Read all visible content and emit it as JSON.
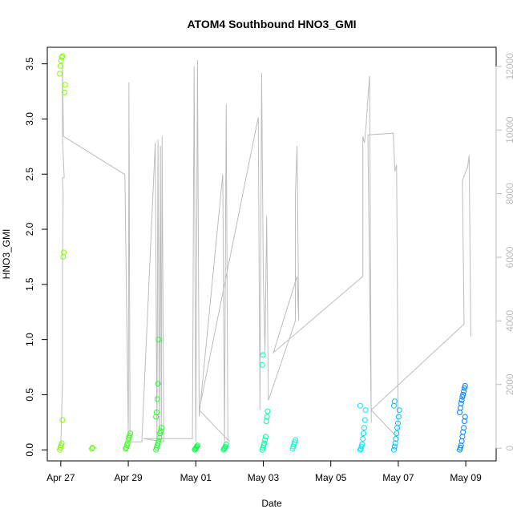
{
  "chart_data": {
    "type": "scatter",
    "title": "ATOM4 Southbound HNO3_GMI",
    "xlabel": "Date",
    "ylabel": "HNO3_GMI",
    "x_ticks": [
      "Apr 27",
      "Apr 29",
      "May 01",
      "May 03",
      "May 05",
      "May 07",
      "May 09"
    ],
    "x_tick_days": [
      0,
      2,
      4,
      6,
      8,
      10,
      12
    ],
    "xlim_days": [
      -0.4,
      12.9
    ],
    "y_ticks": [
      "0.0",
      "0.5",
      "1.0",
      "1.5",
      "2.0",
      "2.5",
      "3.0",
      "3.5"
    ],
    "ylim": [
      -0.1,
      3.65
    ],
    "y2_ticks": [
      "0",
      "2000",
      "4000",
      "6000",
      "8000",
      "10000",
      "12000"
    ],
    "y2lim": [
      -400,
      12600
    ],
    "y2_color": "#bdbdbd",
    "point_color_scale": [
      "#80ff00",
      "#00ff40",
      "#00ffff",
      "#0080ff"
    ],
    "series": [
      {
        "day": 0.05,
        "values": [
          0.0,
          0.02,
          0.04,
          0.06,
          0.27,
          1.75,
          1.79,
          3.24,
          3.31,
          3.41,
          3.48,
          3.53,
          3.56,
          3.57
        ]
      },
      {
        "day": 1.0,
        "values": [
          0.01,
          0.02
        ]
      },
      {
        "day": 2.0,
        "values": [
          0.01,
          0.02,
          0.04,
          0.06,
          0.09,
          0.11,
          0.13,
          0.15
        ]
      },
      {
        "day": 2.9,
        "values": [
          0.0,
          0.02,
          0.04,
          0.06,
          0.08,
          0.11,
          0.15,
          0.17,
          0.2,
          0.3,
          0.34,
          0.46,
          0.6,
          1.0
        ]
      },
      {
        "day": 4.05,
        "values": [
          0.0,
          0.01,
          0.02,
          0.03,
          0.04
        ]
      },
      {
        "day": 4.9,
        "values": [
          0.0,
          0.01,
          0.02,
          0.03,
          0.05
        ]
      },
      {
        "day": 6.05,
        "values": [
          0.0,
          0.02,
          0.04,
          0.06,
          0.09,
          0.12,
          0.26,
          0.3,
          0.35,
          0.77,
          0.86
        ]
      },
      {
        "day": 6.95,
        "values": [
          0.01,
          0.03,
          0.05,
          0.07,
          0.09
        ]
      },
      {
        "day": 8.95,
        "values": [
          0.0,
          0.01,
          0.03,
          0.05,
          0.1,
          0.15,
          0.2,
          0.27,
          0.36,
          0.4
        ]
      },
      {
        "day": 9.95,
        "values": [
          0.0,
          0.03,
          0.06,
          0.1,
          0.15,
          0.2,
          0.24,
          0.3,
          0.36,
          0.4,
          0.44
        ]
      },
      {
        "day": 11.9,
        "values": [
          0.0,
          0.02,
          0.04,
          0.08,
          0.12,
          0.16,
          0.2,
          0.26,
          0.3,
          0.34,
          0.38,
          0.42,
          0.45,
          0.48,
          0.5,
          0.53,
          0.56,
          0.58
        ]
      }
    ],
    "altitude_line": [
      [
        0.0,
        0
      ],
      [
        0.05,
        2000
      ],
      [
        0.05,
        5400
      ],
      [
        0.07,
        8000
      ],
      [
        0.05,
        8500
      ],
      [
        0.1,
        8500
      ],
      [
        0.05,
        9800
      ],
      [
        0.05,
        12100
      ],
      [
        0.08,
        9800
      ],
      [
        1.9,
        8600
      ],
      [
        2.0,
        300
      ],
      [
        2.02,
        11500
      ],
      [
        2.05,
        200
      ],
      [
        2.4,
        200
      ],
      [
        2.8,
        9600
      ],
      [
        2.85,
        200
      ],
      [
        2.88,
        9700
      ],
      [
        2.92,
        200
      ],
      [
        2.95,
        9500
      ],
      [
        2.98,
        300
      ],
      [
        3.0,
        9800
      ],
      [
        3.05,
        200
      ],
      [
        2.45,
        300
      ],
      [
        3.9,
        300
      ],
      [
        3.95,
        12000
      ],
      [
        4.0,
        200
      ],
      [
        4.05,
        12200
      ],
      [
        4.1,
        1000
      ],
      [
        4.8,
        8600
      ],
      [
        4.85,
        200
      ],
      [
        4.9,
        10800
      ],
      [
        4.95,
        300
      ],
      [
        5.0,
        200
      ],
      [
        4.1,
        1200
      ],
      [
        5.85,
        10400
      ],
      [
        5.9,
        1200
      ],
      [
        5.95,
        11800
      ],
      [
        6.0,
        5400
      ],
      [
        6.05,
        3000
      ],
      [
        6.1,
        7300
      ],
      [
        6.15,
        1500
      ],
      [
        6.95,
        4000
      ],
      [
        6.95,
        8000
      ],
      [
        7.0,
        9500
      ],
      [
        7.05,
        4000
      ],
      [
        7.0,
        5400
      ],
      [
        6.3,
        3000
      ],
      [
        8.95,
        5400
      ],
      [
        8.95,
        9800
      ],
      [
        9.0,
        9600
      ],
      [
        9.05,
        10200
      ],
      [
        9.1,
        11000
      ],
      [
        9.15,
        11700
      ],
      [
        9.2,
        800
      ],
      [
        9.1,
        9850
      ],
      [
        9.85,
        9900
      ],
      [
        9.9,
        8700
      ],
      [
        9.95,
        8900
      ],
      [
        10.0,
        300
      ],
      [
        9.2,
        1200
      ],
      [
        11.95,
        3900
      ],
      [
        11.9,
        8400
      ],
      [
        12.0,
        8700
      ],
      [
        12.05,
        8800
      ],
      [
        12.1,
        9200
      ],
      [
        12.15,
        3500
      ]
    ]
  }
}
